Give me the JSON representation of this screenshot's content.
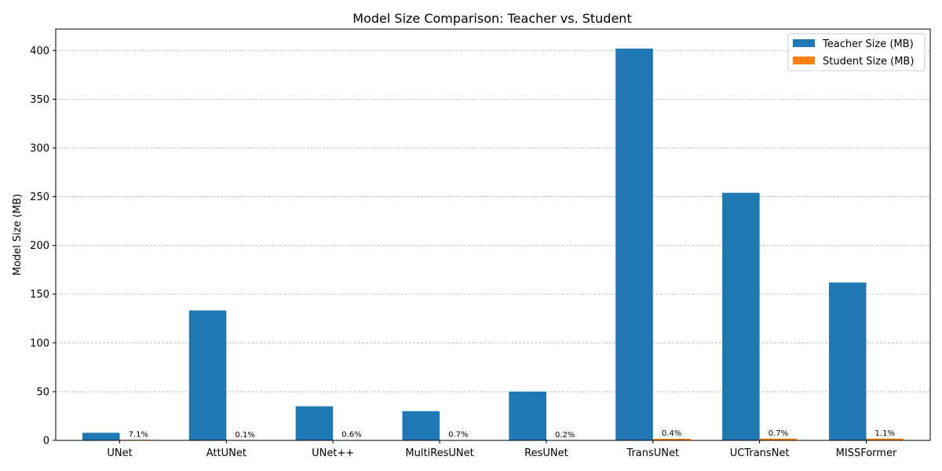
{
  "chart_data": {
    "type": "bar",
    "title": "Model Size Comparison: Teacher vs. Student",
    "xlabel": "",
    "ylabel": "Model Size (MB)",
    "ylim": [
      0,
      422
    ],
    "yticks": [
      "0",
      "50",
      "100",
      "150",
      "200",
      "250",
      "300",
      "350",
      "400"
    ],
    "ytick_values": [
      0,
      50,
      100,
      150,
      200,
      250,
      300,
      350,
      400
    ],
    "grid": "y-dashed",
    "legend_position": "top-right",
    "categories": [
      "UNet",
      "AttUNet",
      "UNet++",
      "MultiResUNet",
      "ResUNet",
      "TransUNet",
      "UCTransNet",
      "MISSFormer"
    ],
    "series": [
      {
        "name": "Teacher Size (MB)",
        "color": "#1f77b4",
        "values": [
          7.8,
          133.3,
          35.0,
          30.0,
          50.0,
          402.0,
          254.0,
          162.0
        ]
      },
      {
        "name": "Student Size (MB)",
        "color": "#ff7f0e",
        "values": [
          0.55,
          0.13,
          0.21,
          0.21,
          0.1,
          1.6,
          1.8,
          1.8
        ]
      }
    ],
    "annotations": [
      "7.1%",
      "0.1%",
      "0.6%",
      "0.7%",
      "0.2%",
      "0.4%",
      "0.7%",
      "1.1%"
    ]
  }
}
